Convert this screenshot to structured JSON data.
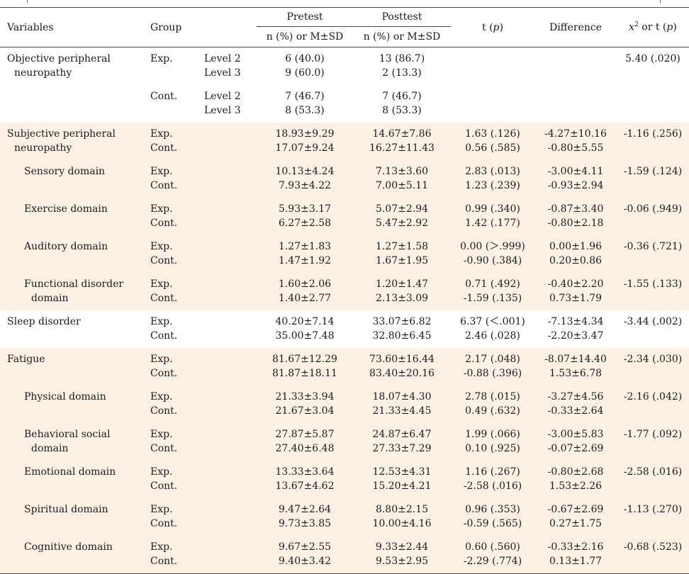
{
  "headers": {
    "variables": "Variables",
    "group": "Group",
    "pretest": "Pretest",
    "posttest": "Posttest",
    "sub": "n (%) or M±SD",
    "t": "t (",
    "t_p": "p",
    "t_close": ")",
    "difference": "Difference",
    "chi_x": "x",
    "chi_sup": "2",
    "chi_rest": " or t (",
    "chi_p": "p",
    "chi_close": ")"
  },
  "objective": {
    "var_line1": "Objective peripheral",
    "var_line2": "neuropathy",
    "exp": "Exp.",
    "cont": "Cont.",
    "exp_levels": [
      "Level 2",
      "Level 3"
    ],
    "exp_pre": [
      "6 (40.0)",
      "9 (60.0)"
    ],
    "exp_post": [
      "13 (86.7)",
      "2 (13.3)"
    ],
    "cont_levels": [
      "Level 2",
      "Level 3"
    ],
    "cont_pre": [
      "7 (46.7)",
      "8 (53.3)"
    ],
    "cont_post": [
      "7 (46.7)",
      "8 (53.3)"
    ],
    "stat": "5.40 (.020)"
  },
  "rows": [
    {
      "v1": "Subjective peripheral",
      "v2": "neuropathy",
      "pre": [
        "18.93±9.29",
        "17.07±9.24"
      ],
      "post": [
        "14.67±7.86",
        "16.27±11.43"
      ],
      "t": [
        "1.63 (.126)",
        "0.56 (.585)"
      ],
      "diff": [
        "-4.27±10.16",
        "-0.80±5.55"
      ],
      "stat": "-1.16 (.256)"
    },
    {
      "v1": "Sensory domain",
      "v2": "",
      "pre": [
        "10.13±4.24",
        "7.93±4.22"
      ],
      "post": [
        "7.13±3.60",
        "7.00±5.11"
      ],
      "t": [
        "2.83 (.013)",
        "1.23 (.239)"
      ],
      "diff": [
        "-3.00±4.11",
        "-0.93±2.94"
      ],
      "stat": "-1.59 (.124)"
    },
    {
      "v1": "Exercise domain",
      "v2": "",
      "pre": [
        "5.93±3.17",
        "6.27±2.58"
      ],
      "post": [
        "5.07±2.94",
        "5.47±2.92"
      ],
      "t": [
        "0.99 (.340)",
        "1.42 (.177)"
      ],
      "diff": [
        "-0.87±3.40",
        "-0.80±2.18"
      ],
      "stat": "-0.06 (.949)"
    },
    {
      "v1": "Auditory domain",
      "v2": "",
      "pre": [
        "1.27±1.83",
        "1.47±1.92"
      ],
      "post": [
        "1.27±1.58",
        "1.67±1.95"
      ],
      "t": [
        "0.00 (＞.999)",
        "-0.90 (.384)"
      ],
      "diff": [
        "0.00±1.96",
        "0.20±0.86"
      ],
      "stat": "-0.36 (.721)"
    },
    {
      "v1": "Functional disorder",
      "v2": "domain",
      "pre": [
        "1.60±2.06",
        "1.40±2.77"
      ],
      "post": [
        "1.20±1.47",
        "2.13±3.09"
      ],
      "t": [
        "0.71 (.492)",
        "-1.59 (.135)"
      ],
      "diff": [
        "-0.40±2.20",
        "0.73±1.79"
      ],
      "stat": "-1.55 (.133)"
    },
    {
      "v1": "Sleep disorder",
      "v2": "",
      "pre": [
        "40.20±7.14",
        "35.00±7.48"
      ],
      "post": [
        "33.07±6.82",
        "32.80±6.45"
      ],
      "t": [
        "6.37 (＜.001)",
        "2.46 (.028)"
      ],
      "diff": [
        "-7.13±4.34",
        "-2.20±3.47"
      ],
      "stat": "-3.44 (.002)"
    },
    {
      "v1": "Fatigue",
      "v2": "",
      "pre": [
        "81.67±12.29",
        "81.87±18.11"
      ],
      "post": [
        "73.60±16.44",
        "83.40±20.16"
      ],
      "t": [
        "2.17 (.048)",
        "-0.88 (.396)"
      ],
      "diff": [
        "-8.07±14.40",
        "1.53±6.78"
      ],
      "stat": "-2.34 (.030)"
    },
    {
      "v1": "Physical domain",
      "v2": "",
      "pre": [
        "21.33±3.94",
        "21.67±3.04"
      ],
      "post": [
        "18.07±4.30",
        "21.33±4.45"
      ],
      "t": [
        "2.78 (.015)",
        "0.49 (.632)"
      ],
      "diff": [
        "-3.27±4.56",
        "-0.33±2.64"
      ],
      "stat": "-2.16 (.042)"
    },
    {
      "v1": "Behavioral social",
      "v2": "domain",
      "pre": [
        "27.87±5.87",
        "27.40±6.48"
      ],
      "post": [
        "24.87±6.47",
        "27.33±7.29"
      ],
      "t": [
        "1.99 (.066)",
        "0.10 (.925)"
      ],
      "diff": [
        "-3.00±5.83",
        "-0.07±2.69"
      ],
      "stat": "-1.77 (.092)"
    },
    {
      "v1": "Emotional domain",
      "v2": "",
      "pre": [
        "13.33±3.64",
        "13.67±4.62"
      ],
      "post": [
        "12.53±4.31",
        "15.20±4.21"
      ],
      "t": [
        "1.16 (.267)",
        "-2.58 (.016)"
      ],
      "diff": [
        "-0.80±2.68",
        "1.53±2.26"
      ],
      "stat": "-2.58 (.016)"
    },
    {
      "v1": "Spiritual domain",
      "v2": "",
      "pre": [
        "9.47±2.64",
        "9.73±3.85"
      ],
      "post": [
        "8.80±2.15",
        "10.00±4.16"
      ],
      "t": [
        "0.96 (.353)",
        "-0.59 (.565)"
      ],
      "diff": [
        "-0.67±2.69",
        "0.27±1.75"
      ],
      "stat": "-1.13 (.270)"
    },
    {
      "v1": "Cognitive domain",
      "v2": "",
      "pre": [
        "9.67±2.55",
        "9.40±3.42"
      ],
      "post": [
        "9.33±2.44",
        "9.53±2.95"
      ],
      "t": [
        "0.60 (.560)",
        "-2.29 (.774)"
      ],
      "diff": [
        "-0.33±2.16",
        "0.13±1.77"
      ],
      "stat": "-0.68 (.523)"
    }
  ],
  "groups": {
    "exp": "Exp.",
    "cont": "Cont."
  }
}
